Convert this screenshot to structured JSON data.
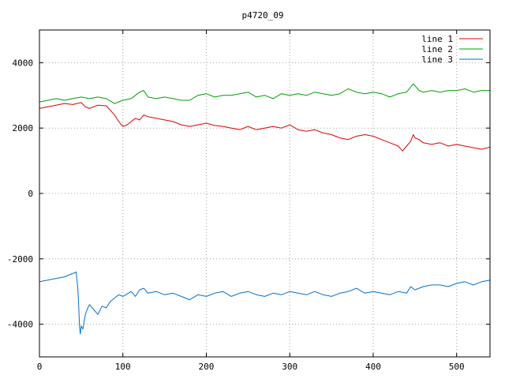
{
  "chart_data": {
    "type": "line",
    "title": "p4720_09",
    "xlabel": "",
    "ylabel": "",
    "xlim": [
      0,
      540
    ],
    "ylim": [
      -5000,
      5000
    ],
    "x_ticks": [
      0,
      100,
      200,
      300,
      400,
      500
    ],
    "y_ticks": [
      -4000,
      -2000,
      0,
      2000,
      4000
    ],
    "grid": true,
    "legend_position": "top-right",
    "series": [
      {
        "name": "line 1",
        "color": "#e00000",
        "points": [
          [
            0,
            2600
          ],
          [
            10,
            2650
          ],
          [
            20,
            2700
          ],
          [
            30,
            2750
          ],
          [
            40,
            2720
          ],
          [
            50,
            2780
          ],
          [
            55,
            2650
          ],
          [
            60,
            2600
          ],
          [
            70,
            2700
          ],
          [
            80,
            2680
          ],
          [
            90,
            2400
          ],
          [
            95,
            2200
          ],
          [
            100,
            2050
          ],
          [
            105,
            2100
          ],
          [
            110,
            2200
          ],
          [
            115,
            2300
          ],
          [
            120,
            2250
          ],
          [
            125,
            2400
          ],
          [
            130,
            2350
          ],
          [
            140,
            2300
          ],
          [
            150,
            2250
          ],
          [
            160,
            2200
          ],
          [
            170,
            2100
          ],
          [
            180,
            2050
          ],
          [
            190,
            2100
          ],
          [
            200,
            2150
          ],
          [
            210,
            2080
          ],
          [
            220,
            2050
          ],
          [
            230,
            2000
          ],
          [
            240,
            1950
          ],
          [
            250,
            2050
          ],
          [
            260,
            1950
          ],
          [
            270,
            2000
          ],
          [
            280,
            2050
          ],
          [
            290,
            2000
          ],
          [
            300,
            2100
          ],
          [
            310,
            1950
          ],
          [
            320,
            1900
          ],
          [
            330,
            1950
          ],
          [
            340,
            1850
          ],
          [
            350,
            1800
          ],
          [
            360,
            1700
          ],
          [
            370,
            1650
          ],
          [
            380,
            1750
          ],
          [
            390,
            1800
          ],
          [
            400,
            1750
          ],
          [
            410,
            1650
          ],
          [
            420,
            1550
          ],
          [
            430,
            1450
          ],
          [
            435,
            1300
          ],
          [
            440,
            1450
          ],
          [
            445,
            1600
          ],
          [
            448,
            1800
          ],
          [
            450,
            1700
          ],
          [
            455,
            1650
          ],
          [
            460,
            1550
          ],
          [
            470,
            1500
          ],
          [
            480,
            1550
          ],
          [
            490,
            1450
          ],
          [
            500,
            1500
          ],
          [
            510,
            1450
          ],
          [
            520,
            1400
          ],
          [
            530,
            1350
          ],
          [
            540,
            1420
          ]
        ]
      },
      {
        "name": "line 2",
        "color": "#00a000",
        "points": [
          [
            0,
            2800
          ],
          [
            10,
            2850
          ],
          [
            20,
            2900
          ],
          [
            30,
            2850
          ],
          [
            40,
            2900
          ],
          [
            50,
            2950
          ],
          [
            60,
            2900
          ],
          [
            70,
            2950
          ],
          [
            80,
            2900
          ],
          [
            90,
            2750
          ],
          [
            95,
            2800
          ],
          [
            100,
            2850
          ],
          [
            110,
            2900
          ],
          [
            115,
            3000
          ],
          [
            120,
            3100
          ],
          [
            125,
            3150
          ],
          [
            130,
            2950
          ],
          [
            140,
            2900
          ],
          [
            150,
            2950
          ],
          [
            160,
            2900
          ],
          [
            170,
            2850
          ],
          [
            180,
            2850
          ],
          [
            190,
            3000
          ],
          [
            200,
            3050
          ],
          [
            210,
            2950
          ],
          [
            220,
            3000
          ],
          [
            230,
            3000
          ],
          [
            240,
            3050
          ],
          [
            250,
            3100
          ],
          [
            260,
            2950
          ],
          [
            270,
            3000
          ],
          [
            280,
            2900
          ],
          [
            290,
            3050
          ],
          [
            300,
            3000
          ],
          [
            310,
            3050
          ],
          [
            320,
            3000
          ],
          [
            330,
            3100
          ],
          [
            340,
            3050
          ],
          [
            350,
            3000
          ],
          [
            360,
            3050
          ],
          [
            370,
            3200
          ],
          [
            380,
            3100
          ],
          [
            390,
            3050
          ],
          [
            400,
            3100
          ],
          [
            410,
            3050
          ],
          [
            420,
            2950
          ],
          [
            430,
            3050
          ],
          [
            440,
            3100
          ],
          [
            448,
            3350
          ],
          [
            450,
            3300
          ],
          [
            455,
            3150
          ],
          [
            460,
            3100
          ],
          [
            470,
            3150
          ],
          [
            480,
            3100
          ],
          [
            490,
            3150
          ],
          [
            500,
            3150
          ],
          [
            510,
            3200
          ],
          [
            520,
            3100
          ],
          [
            530,
            3150
          ],
          [
            540,
            3150
          ]
        ]
      },
      {
        "name": "line 3",
        "color": "#0070d0",
        "points": [
          [
            0,
            -2700
          ],
          [
            10,
            -2650
          ],
          [
            20,
            -2600
          ],
          [
            30,
            -2550
          ],
          [
            40,
            -2450
          ],
          [
            44,
            -2400
          ],
          [
            46,
            -2900
          ],
          [
            47,
            -3400
          ],
          [
            48,
            -4100
          ],
          [
            49,
            -4300
          ],
          [
            50,
            -4050
          ],
          [
            52,
            -4150
          ],
          [
            55,
            -3700
          ],
          [
            58,
            -3500
          ],
          [
            60,
            -3400
          ],
          [
            65,
            -3550
          ],
          [
            70,
            -3700
          ],
          [
            75,
            -3450
          ],
          [
            80,
            -3500
          ],
          [
            85,
            -3300
          ],
          [
            90,
            -3200
          ],
          [
            95,
            -3100
          ],
          [
            100,
            -3150
          ],
          [
            110,
            -3000
          ],
          [
            115,
            -3150
          ],
          [
            120,
            -2950
          ],
          [
            125,
            -2900
          ],
          [
            130,
            -3050
          ],
          [
            140,
            -3000
          ],
          [
            150,
            -3100
          ],
          [
            160,
            -3050
          ],
          [
            170,
            -3150
          ],
          [
            180,
            -3250
          ],
          [
            190,
            -3100
          ],
          [
            200,
            -3150
          ],
          [
            210,
            -3050
          ],
          [
            220,
            -3000
          ],
          [
            230,
            -3150
          ],
          [
            240,
            -3050
          ],
          [
            250,
            -3000
          ],
          [
            260,
            -3100
          ],
          [
            270,
            -3150
          ],
          [
            280,
            -3050
          ],
          [
            290,
            -3100
          ],
          [
            300,
            -3000
          ],
          [
            310,
            -3050
          ],
          [
            320,
            -3100
          ],
          [
            330,
            -3000
          ],
          [
            340,
            -3100
          ],
          [
            350,
            -3150
          ],
          [
            360,
            -3050
          ],
          [
            370,
            -3000
          ],
          [
            380,
            -2900
          ],
          [
            390,
            -3050
          ],
          [
            400,
            -3000
          ],
          [
            410,
            -3050
          ],
          [
            420,
            -3100
          ],
          [
            430,
            -3000
          ],
          [
            440,
            -3050
          ],
          [
            445,
            -2850
          ],
          [
            450,
            -2950
          ],
          [
            460,
            -2850
          ],
          [
            470,
            -2800
          ],
          [
            480,
            -2800
          ],
          [
            490,
            -2850
          ],
          [
            500,
            -2750
          ],
          [
            510,
            -2700
          ],
          [
            520,
            -2800
          ],
          [
            530,
            -2700
          ],
          [
            540,
            -2650
          ]
        ]
      }
    ]
  }
}
